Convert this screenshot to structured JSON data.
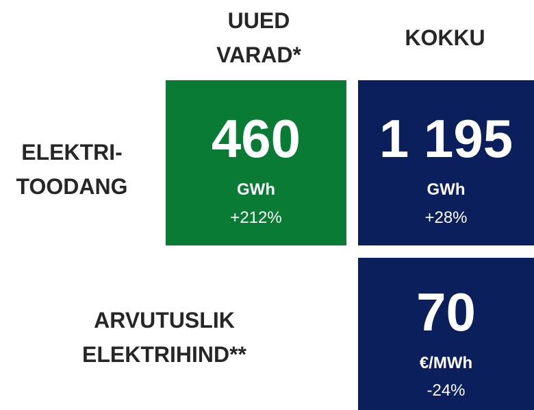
{
  "columns": [
    {
      "label_lines": [
        "UUED",
        "VARAD*"
      ]
    },
    {
      "label_lines": [
        "KOKKU"
      ]
    }
  ],
  "rows": [
    {
      "label_lines": [
        "ELEKTRI-",
        "TOODANG"
      ],
      "cells": [
        {
          "value": "460",
          "unit": "GWh",
          "change": "+212%"
        },
        {
          "value": "1 195",
          "unit": "GWh",
          "change": "+28%"
        }
      ]
    },
    {
      "label_lines": [
        "ARVUTUSLIK",
        "ELEKTRIHIND**"
      ],
      "cells": [
        {
          "value": "70",
          "unit": "€/MWh",
          "change": "-24%"
        }
      ]
    }
  ]
}
